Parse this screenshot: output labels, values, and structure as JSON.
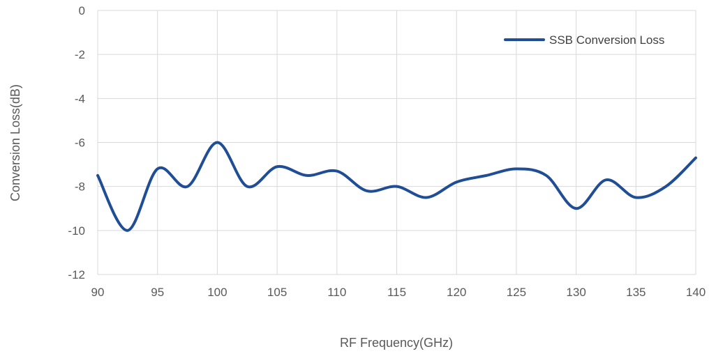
{
  "chart_data": {
    "type": "line",
    "title": "",
    "xlabel": "RF Frequency(GHz)",
    "ylabel": "Conversion Loss(dB)",
    "xlim": [
      90,
      140
    ],
    "ylim": [
      -12,
      0
    ],
    "xticks": [
      90,
      95,
      100,
      105,
      110,
      115,
      120,
      125,
      130,
      135,
      140
    ],
    "yticks": [
      0,
      -2,
      -4,
      -6,
      -8,
      -10,
      -12
    ],
    "grid": true,
    "legend_position": "top-right",
    "series": [
      {
        "name": "SSB Conversion Loss",
        "color": "#1f4e96",
        "x": [
          90,
          92.5,
          95,
          97.5,
          100,
          102.5,
          105,
          107.5,
          110,
          112.5,
          115,
          117.5,
          120,
          122.5,
          125,
          127.5,
          130,
          132.5,
          135,
          137.5,
          140
        ],
        "y": [
          -7.5,
          -10.0,
          -7.2,
          -8.0,
          -6.0,
          -8.0,
          -7.1,
          -7.5,
          -7.3,
          -8.2,
          -8.0,
          -8.5,
          -7.8,
          -7.5,
          -7.2,
          -7.5,
          -9.0,
          -7.7,
          -8.5,
          -8.0,
          -6.7
        ]
      }
    ]
  }
}
